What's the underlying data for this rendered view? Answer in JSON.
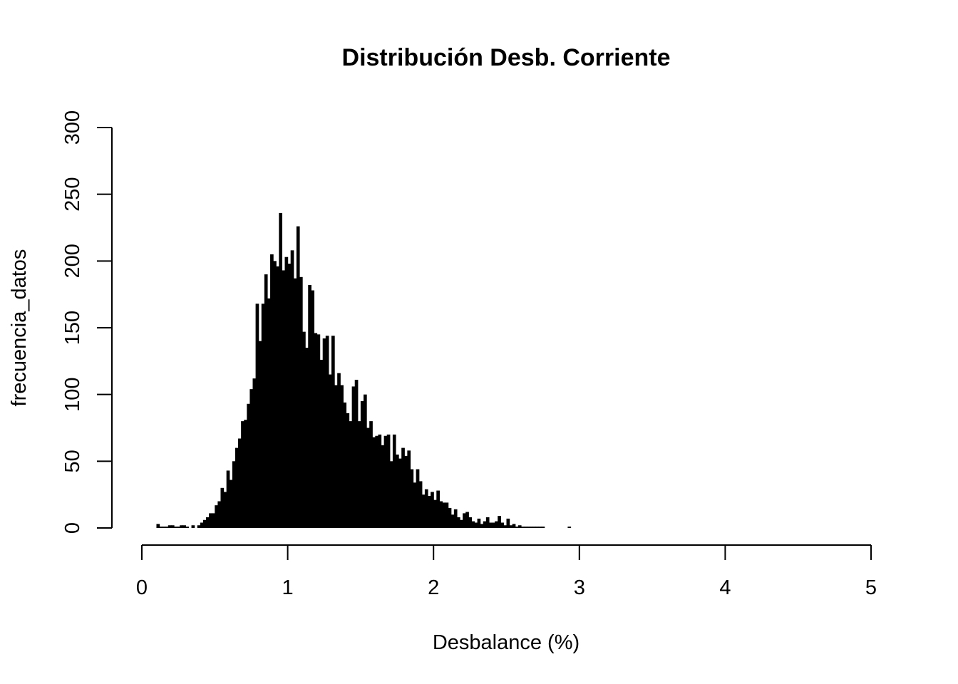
{
  "chart_data": {
    "type": "bar",
    "title": "Distribución Desb. Corriente",
    "xlabel": "Desbalance (%)",
    "ylabel": "frecuencia_datos",
    "xlim": [
      0,
      5
    ],
    "ylim": [
      0,
      300
    ],
    "x_ticks": [
      "0",
      "1",
      "2",
      "3",
      "4",
      "5"
    ],
    "y_ticks": [
      "0",
      "50",
      "100",
      "150",
      "200",
      "250",
      "300"
    ],
    "grid": false,
    "legend": "none",
    "bar_color": "#000000",
    "bin_start": 0.1,
    "bin_width": 0.02,
    "values": [
      3,
      1,
      1,
      1,
      2,
      2,
      1,
      1,
      2,
      2,
      1,
      0,
      2,
      0,
      2,
      4,
      6,
      8,
      11,
      11,
      17,
      20,
      30,
      27,
      43,
      36,
      50,
      60,
      67,
      80,
      81,
      93,
      104,
      112,
      168,
      140,
      168,
      190,
      172,
      205,
      200,
      196,
      236,
      193,
      203,
      198,
      208,
      187,
      226,
      188,
      147,
      135,
      182,
      178,
      146,
      145,
      126,
      142,
      144,
      115,
      144,
      107,
      116,
      107,
      94,
      86,
      80,
      106,
      111,
      80,
      95,
      100,
      75,
      80,
      68,
      69,
      70,
      62,
      69,
      70,
      50,
      70,
      55,
      52,
      60,
      54,
      58,
      44,
      34,
      44,
      35,
      25,
      29,
      24,
      27,
      21,
      28,
      20,
      19,
      19,
      15,
      10,
      14,
      8,
      6,
      11,
      12,
      8,
      5,
      4,
      7,
      3,
      5,
      8,
      4,
      4,
      5,
      9,
      4,
      2,
      7,
      2,
      3,
      1,
      2,
      1,
      1,
      1,
      1,
      1,
      1,
      1,
      1,
      0,
      0,
      0,
      0,
      0,
      0,
      0,
      0,
      1
    ]
  }
}
